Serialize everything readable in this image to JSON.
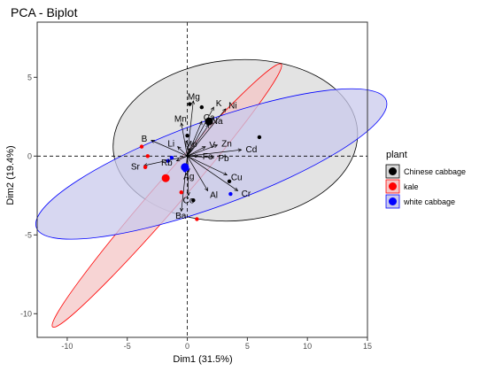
{
  "chart_data": {
    "type": "scatter",
    "title": "PCA - Biplot",
    "xlabel": "Dim1 (31.5%)",
    "ylabel": "Dim2 (19.4%)",
    "xlim": [
      -12.5,
      15
    ],
    "ylim": [
      -11.5,
      8.5
    ],
    "x_ticks": [
      -10,
      -5,
      0,
      5,
      10,
      15
    ],
    "y_ticks": [
      5,
      0,
      -5,
      -10
    ],
    "grid": false,
    "reference_lines": {
      "x": 0,
      "y": 0
    },
    "legend": {
      "title": "plant",
      "position": "right",
      "entries": [
        {
          "name": "Chinese cabbage",
          "color": "#000000",
          "fill": "#d9d9d9"
        },
        {
          "name": "kale",
          "color": "#ff0000",
          "fill": "#f4c6c6"
        },
        {
          "name": "white cabbage",
          "color": "#0000ff",
          "fill": "#c9c9ec"
        }
      ]
    },
    "series": [
      {
        "name": "Chinese cabbage",
        "color": "#000000",
        "fill": "#d9d9d9",
        "ellipse": {
          "cx": 4.0,
          "cy": 1.0,
          "rx": 10.2,
          "ry": 5.1,
          "angle": -5
        },
        "centroid": [
          1.8,
          2.2
        ],
        "points": [
          [
            0.2,
            3.3
          ],
          [
            0.0,
            1.3
          ],
          [
            6.0,
            1.2
          ],
          [
            0.5,
            -2.8
          ],
          [
            3.5,
            -1.6
          ],
          [
            1.2,
            3.1
          ]
        ]
      },
      {
        "name": "kale",
        "color": "#ff0000",
        "fill": "#f4c6c6",
        "ellipse": {
          "cx": -1.7,
          "cy": -2.5,
          "rx": 14.5,
          "ry": 0.9,
          "angle": -49
        },
        "centroid": [
          -1.8,
          -1.4
        ],
        "points": [
          [
            -3.8,
            0.6
          ],
          [
            -3.3,
            0.0
          ],
          [
            -0.5,
            -2.3
          ],
          [
            0.8,
            -4.0
          ],
          [
            -3.5,
            -0.7
          ]
        ]
      },
      {
        "name": "white cabbage",
        "color": "#0000ff",
        "fill": "#c9c9ec",
        "ellipse": {
          "cx": 2.0,
          "cy": -0.5,
          "rx": 15.5,
          "ry": 2.7,
          "angle": -20
        },
        "centroid": [
          -0.2,
          -0.7
        ],
        "points": [
          [
            -1.3,
            -0.1
          ],
          [
            -1.6,
            -0.3
          ],
          [
            -0.2,
            -0.9
          ],
          [
            3.6,
            -2.4
          ],
          [
            0.0,
            -0.8
          ]
        ]
      }
    ],
    "variables": [
      {
        "name": "Mg",
        "x": 0.5,
        "y": 3.5
      },
      {
        "name": "K",
        "x": 2.2,
        "y": 3.1
      },
      {
        "name": "Ni",
        "x": 3.2,
        "y": 3.0
      },
      {
        "name": "Na",
        "x": 1.8,
        "y": 2.0
      },
      {
        "name": "Ca",
        "x": 1.2,
        "y": 2.2
      },
      {
        "name": "Mn",
        "x": -0.5,
        "y": 2.1
      },
      {
        "name": "B",
        "x": -3.0,
        "y": 1.0
      },
      {
        "name": "Li",
        "x": -0.8,
        "y": 0.6
      },
      {
        "name": "Mo",
        "x": 0.2,
        "y": 0.5
      },
      {
        "name": "V",
        "x": 1.5,
        "y": 0.6
      },
      {
        "name": "Zn",
        "x": 2.5,
        "y": 0.7
      },
      {
        "name": "Cd",
        "x": 4.5,
        "y": 0.4
      },
      {
        "name": "Fe",
        "x": 0.9,
        "y": 0.0
      },
      {
        "name": "Pb",
        "x": 2.2,
        "y": -0.1
      },
      {
        "name": "Rb",
        "x": -0.9,
        "y": -0.3
      },
      {
        "name": "Sr",
        "x": -3.6,
        "y": -0.6
      },
      {
        "name": "Ag",
        "x": 0.1,
        "y": -1.0
      },
      {
        "name": "Cu",
        "x": 3.3,
        "y": -1.2
      },
      {
        "name": "Al",
        "x": 1.7,
        "y": -2.2
      },
      {
        "name": "Cr",
        "x": 4.2,
        "y": -2.2
      },
      {
        "name": "Co",
        "x": 0.1,
        "y": -2.5
      },
      {
        "name": "Ba",
        "x": -0.5,
        "y": -3.5
      }
    ]
  }
}
